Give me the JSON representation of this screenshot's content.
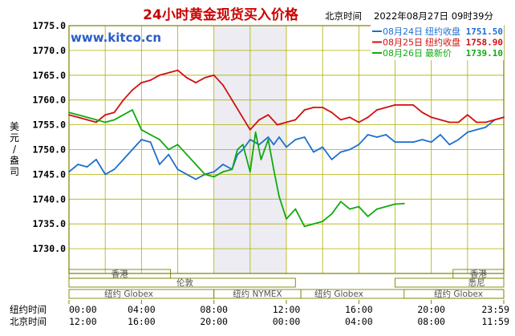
{
  "title": "24小时黄金现货买入价格",
  "header": {
    "timezone_label": "北京时间",
    "timestamp": "2022年08月27日 09时39分"
  },
  "watermark": "www.kitco.cn",
  "ylabel": "美元/盎司",
  "legend": [
    {
      "date": "08月24日",
      "label": "纽约收盘",
      "value": "1751.50",
      "color": "#1e6fcf"
    },
    {
      "date": "08月25日",
      "label": "纽约收盘",
      "value": "1758.90",
      "color": "#d10f0f"
    },
    {
      "date": "08月26日",
      "label": "最新价",
      "value": "1739.10",
      "color": "#11aa11"
    }
  ],
  "markets": {
    "hongkong": "香港",
    "london": "伦敦",
    "newyork_globex": "纽约 NYMEX",
    "globex": "纽约 Globex",
    "sydney": "悉尼"
  },
  "time_rows": [
    {
      "label": "纽约时间",
      "ticks": [
        "00:00",
        "04:00",
        "08:00",
        "12:00",
        "16:00",
        "20:00",
        "23:59"
      ]
    },
    {
      "label": "北京时间",
      "ticks": [
        "12:00",
        "16:00",
        "20:00",
        "00:00",
        "04:00",
        "08:00",
        "11:59"
      ]
    }
  ],
  "colors": {
    "border": "#808000",
    "grid": "#b0b000",
    "shade": "#ececf2",
    "title": "#cc0000",
    "watermark": "#2a5cc9",
    "legend_bg": "#ffffff"
  },
  "chart_data": {
    "type": "line",
    "title": "24小时黄金现货买入价格",
    "xlabel": "纽约时间 / 北京时间",
    "ylabel": "美元/盎司",
    "xunit": "hours (New York time)",
    "xlim": [
      0,
      24
    ],
    "ylim": [
      1725,
      1775
    ],
    "yticks": [
      1730,
      1735,
      1740,
      1745,
      1750,
      1755,
      1760,
      1765,
      1770,
      1775
    ],
    "grid": true,
    "legend_position": "top-right",
    "shaded_region": [
      8,
      12
    ],
    "series": [
      {
        "name": "08月24日",
        "color": "#1e6fcf",
        "x": [
          0,
          0.5,
          1,
          1.5,
          2,
          2.5,
          3,
          3.5,
          4,
          4.5,
          5,
          5.5,
          6,
          6.5,
          7,
          7.5,
          8,
          8.5,
          9,
          9.3,
          9.6,
          10,
          10.5,
          11,
          11.3,
          11.6,
          12,
          12.5,
          13,
          13.5,
          14,
          14.5,
          15,
          15.5,
          16,
          16.5,
          17,
          17.5,
          18,
          18.5,
          19,
          19.5,
          20,
          20.5,
          21,
          21.5,
          22,
          22.5,
          23,
          23.5,
          24
        ],
        "values": [
          1745.5,
          1747,
          1746.5,
          1748,
          1745,
          1746,
          1748,
          1750,
          1752,
          1751.5,
          1747,
          1749,
          1746,
          1745,
          1744,
          1745,
          1745.5,
          1747,
          1746,
          1749,
          1750,
          1752,
          1751,
          1752.5,
          1751,
          1752.5,
          1750.5,
          1752,
          1752.5,
          1749.5,
          1750.5,
          1748,
          1749.5,
          1750,
          1751,
          1753,
          1752.5,
          1753,
          1751.5,
          1751.5,
          1751.5,
          1752,
          1751.5,
          1753,
          1751,
          1752,
          1753.5,
          1754,
          1754.5,
          1756,
          1756.5
        ]
      },
      {
        "name": "08月25日",
        "color": "#d10f0f",
        "x": [
          0,
          0.5,
          1,
          1.5,
          2,
          2.5,
          3,
          3.5,
          4,
          4.5,
          5,
          5.5,
          6,
          6.5,
          7,
          7.5,
          8,
          8.5,
          9,
          9.5,
          10,
          10.5,
          11,
          11.5,
          12,
          12.5,
          13,
          13.5,
          14,
          14.5,
          15,
          15.5,
          16,
          16.5,
          17,
          17.5,
          18,
          18.5,
          19,
          19.5,
          20,
          20.5,
          21,
          21.5,
          22,
          22.5,
          23,
          23.5,
          24
        ],
        "values": [
          1757,
          1756.5,
          1756,
          1755.5,
          1757,
          1757.5,
          1760,
          1762,
          1763.5,
          1764,
          1765,
          1765.5,
          1766,
          1764.5,
          1763.5,
          1764.5,
          1765,
          1763,
          1760,
          1757,
          1754,
          1756,
          1757,
          1755,
          1755.5,
          1756,
          1758,
          1758.5,
          1758.5,
          1757.5,
          1756,
          1756.5,
          1755.5,
          1756.5,
          1758,
          1758.5,
          1759,
          1759,
          1759,
          1757.5,
          1756.5,
          1756,
          1755.5,
          1755.5,
          1757,
          1755.5,
          1755.5,
          1756,
          1756.5
        ]
      },
      {
        "name": "08月26日",
        "color": "#11aa11",
        "x": [
          0,
          0.5,
          1,
          1.5,
          2,
          2.5,
          3,
          3.5,
          4,
          4.5,
          5,
          5.5,
          6,
          6.5,
          7,
          7.5,
          8,
          8.5,
          9,
          9.3,
          9.6,
          10,
          10.3,
          10.6,
          11,
          11.3,
          11.6,
          12,
          12.5,
          13,
          13.5,
          14,
          14.5,
          15,
          15.5,
          16,
          16.5,
          17,
          17.5,
          18,
          18.5
        ],
        "values": [
          1757.5,
          1757,
          1756.5,
          1756,
          1755.5,
          1756,
          1757,
          1758,
          1754,
          1753,
          1752,
          1750,
          1751,
          1749,
          1747,
          1745,
          1744.5,
          1745.5,
          1746,
          1750,
          1751,
          1745.5,
          1753.5,
          1748,
          1752,
          1746,
          1740.5,
          1736,
          1738,
          1734.5,
          1735,
          1735.5,
          1737,
          1739.5,
          1738,
          1738.5,
          1736.5,
          1738,
          1738.5,
          1739,
          1739.1
        ]
      }
    ]
  }
}
